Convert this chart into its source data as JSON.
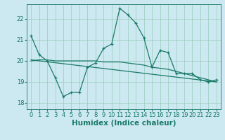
{
  "xlabel": "Humidex (Indice chaleur)",
  "bg_color": "#cce8f0",
  "grid_color": "#99ccbb",
  "line_color": "#1a7a6a",
  "xlim": [
    -0.5,
    23.5
  ],
  "ylim": [
    17.7,
    22.7
  ],
  "yticks": [
    18,
    19,
    20,
    21,
    22
  ],
  "xticks": [
    0,
    1,
    2,
    3,
    4,
    5,
    6,
    7,
    8,
    9,
    10,
    11,
    12,
    13,
    14,
    15,
    16,
    17,
    18,
    19,
    20,
    21,
    22,
    23
  ],
  "line1_x": [
    0,
    1,
    2,
    3,
    4,
    5,
    6,
    7,
    8,
    9,
    10,
    11,
    12,
    13,
    14,
    15,
    16,
    17,
    18,
    19,
    20,
    21,
    22,
    23
  ],
  "line1_y": [
    21.2,
    20.3,
    20.0,
    19.2,
    18.3,
    18.5,
    18.5,
    19.7,
    19.9,
    20.6,
    20.8,
    22.5,
    22.2,
    21.8,
    21.1,
    19.7,
    20.5,
    20.4,
    19.4,
    19.4,
    19.4,
    19.1,
    19.0,
    19.1
  ],
  "line2_x": [
    0,
    1,
    2,
    3,
    4,
    5,
    6,
    7,
    8,
    9,
    10,
    11,
    12,
    13,
    14,
    15,
    16,
    17,
    18,
    19,
    20,
    21,
    22,
    23
  ],
  "line2_y": [
    20.0,
    20.05,
    20.05,
    20.0,
    20.0,
    20.0,
    20.0,
    20.0,
    20.0,
    19.95,
    19.95,
    19.95,
    19.9,
    19.85,
    19.8,
    19.7,
    19.65,
    19.6,
    19.5,
    19.4,
    19.3,
    19.2,
    19.1,
    19.0
  ],
  "line3_x": [
    0,
    23
  ],
  "line3_y": [
    20.05,
    19.0
  ],
  "font_size_xlabel": 7.5,
  "tick_fontsize": 6.0
}
